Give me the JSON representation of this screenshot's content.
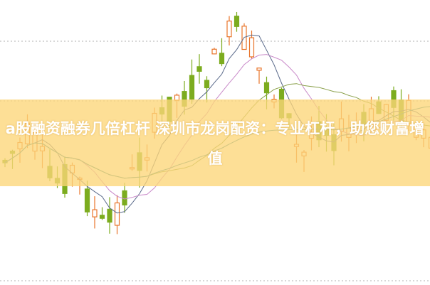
{
  "title": "a股融资融券几倍杠杆 深圳市龙岗配资：专业杠杆，助您财富增值",
  "colors": {
    "rising": "#e8742a",
    "falling": "#7cac1f",
    "banner": "#fcd678",
    "grid": "#b0b0b0"
  }
}
